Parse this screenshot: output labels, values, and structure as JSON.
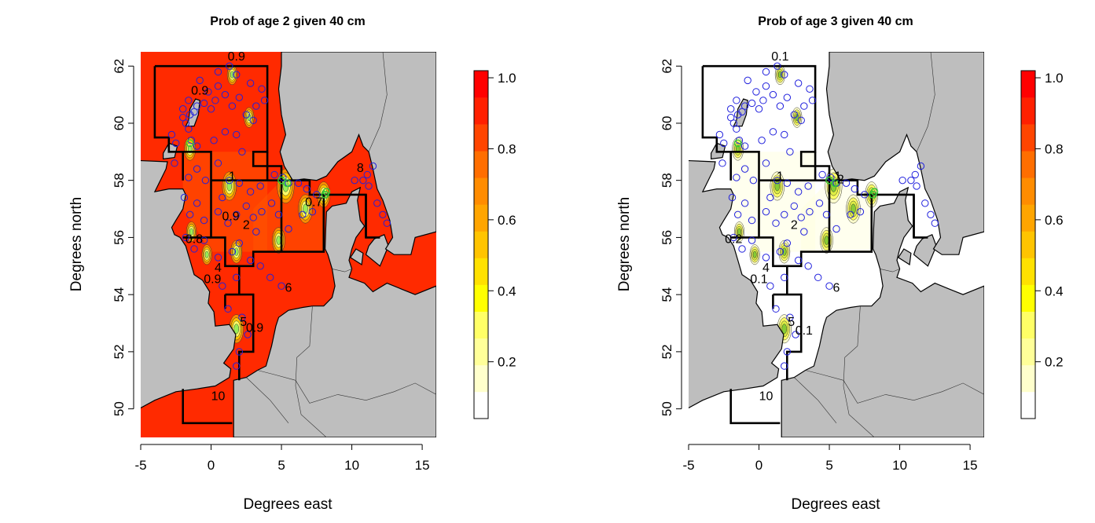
{
  "panels": [
    {
      "id": "age2",
      "title": "Prob of age 2 given 40 cm",
      "xlabel": "Degrees east",
      "ylabel": "Degrees north",
      "x_ticks": [
        "-5",
        "0",
        "5",
        "10",
        "15"
      ],
      "y_ticks": [
        "50",
        "52",
        "54",
        "56",
        "58",
        "60",
        "62"
      ],
      "colorbar_ticks": [
        "0.2",
        "0.4",
        "0.6",
        "0.8",
        "1.0"
      ],
      "contour_labels": [
        {
          "text": "0.9",
          "lon": 1.8,
          "lat": 62.2
        },
        {
          "text": "0.9",
          "lon": -0.8,
          "lat": 61.0
        },
        {
          "text": "0.9",
          "lon": 1.4,
          "lat": 56.6
        },
        {
          "text": "0.8",
          "lon": -1.2,
          "lat": 55.8
        },
        {
          "text": "0.9",
          "lon": 0.1,
          "lat": 54.4
        },
        {
          "text": "0.9",
          "lon": 3.1,
          "lat": 52.7
        },
        {
          "text": "0.7",
          "lon": 7.3,
          "lat": 57.1
        },
        {
          "text": "8",
          "lon": 10.6,
          "lat": 58.3
        }
      ],
      "background_value": 0.98
    },
    {
      "id": "age3",
      "title": "Prob of age 3 given 40 cm",
      "xlabel": "Degrees east",
      "ylabel": "Degrees north",
      "x_ticks": [
        "-5",
        "0",
        "5",
        "10",
        "15"
      ],
      "y_ticks": [
        "50",
        "52",
        "54",
        "56",
        "58",
        "60",
        "62"
      ],
      "colorbar_ticks": [
        "0.2",
        "0.4",
        "0.6",
        "0.8",
        "1.0"
      ],
      "contour_labels": [
        {
          "text": "0.1",
          "lon": 1.5,
          "lat": 62.2
        },
        {
          "text": "0.2",
          "lon": -1.8,
          "lat": 55.8
        },
        {
          "text": "0.1",
          "lon": 0.0,
          "lat": 54.4
        },
        {
          "text": "0.1",
          "lon": 3.2,
          "lat": 52.6
        },
        {
          "text": "1",
          "lon": 5.6,
          "lat": 58.0
        },
        {
          "text": "2",
          "lon": 5.8,
          "lat": 57.9
        }
      ],
      "background_value": 0.02
    }
  ],
  "areas": [
    {
      "label": "1",
      "lon": 1.5,
      "lat": 58.0
    },
    {
      "label": "2",
      "lon": 2.5,
      "lat": 56.3
    },
    {
      "label": "4",
      "lon": 0.5,
      "lat": 54.8
    },
    {
      "label": "5",
      "lon": 2.3,
      "lat": 52.9
    },
    {
      "label": "6",
      "lon": 5.5,
      "lat": 54.1
    },
    {
      "label": "10",
      "lon": 0.5,
      "lat": 50.3
    }
  ],
  "colorbar_colors": [
    "#ffffff",
    "#ffffcc",
    "#ffff99",
    "#ffff66",
    "#ffff00",
    "#ffe100",
    "#ffc400",
    "#ffa500",
    "#ff8c00",
    "#ff6e00",
    "#ff4500",
    "#ff2000",
    "#ff0000"
  ],
  "colors": {
    "land": "#bebebe",
    "sea_high": "#ff2a00",
    "sea_mid": "#ff5500",
    "sea_low": "#ffffff",
    "survey_points": "#2020dd",
    "highlight_points": "#33cc33"
  },
  "axes": {
    "xlim": [
      -5,
      16
    ],
    "ylim": [
      49,
      62.5
    ]
  }
}
